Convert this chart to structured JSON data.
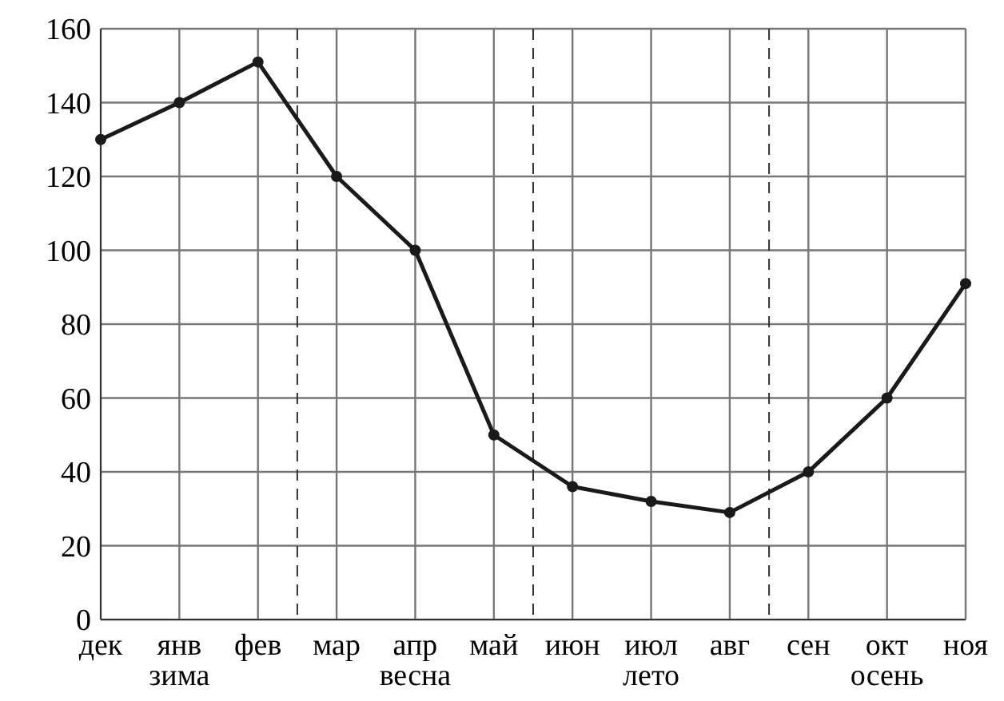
{
  "chart_data": {
    "type": "line",
    "categories": [
      "дек",
      "янв",
      "фев",
      "мар",
      "апр",
      "май",
      "июн",
      "июл",
      "авг",
      "сен",
      "окт",
      "ноя"
    ],
    "series": [
      {
        "color": "#1a1a1a",
        "values": [
          130,
          140,
          151,
          120,
          100,
          50,
          36,
          32,
          29,
          40,
          60,
          91
        ]
      }
    ],
    "ylim": [
      0,
      160
    ],
    "yticks": [
      0,
      20,
      40,
      60,
      80,
      100,
      120,
      140,
      160
    ],
    "grid": true,
    "marker": "circle",
    "line_style": "solid",
    "annotations": [
      "зима",
      "весна",
      "лето",
      "осень"
    ]
  }
}
